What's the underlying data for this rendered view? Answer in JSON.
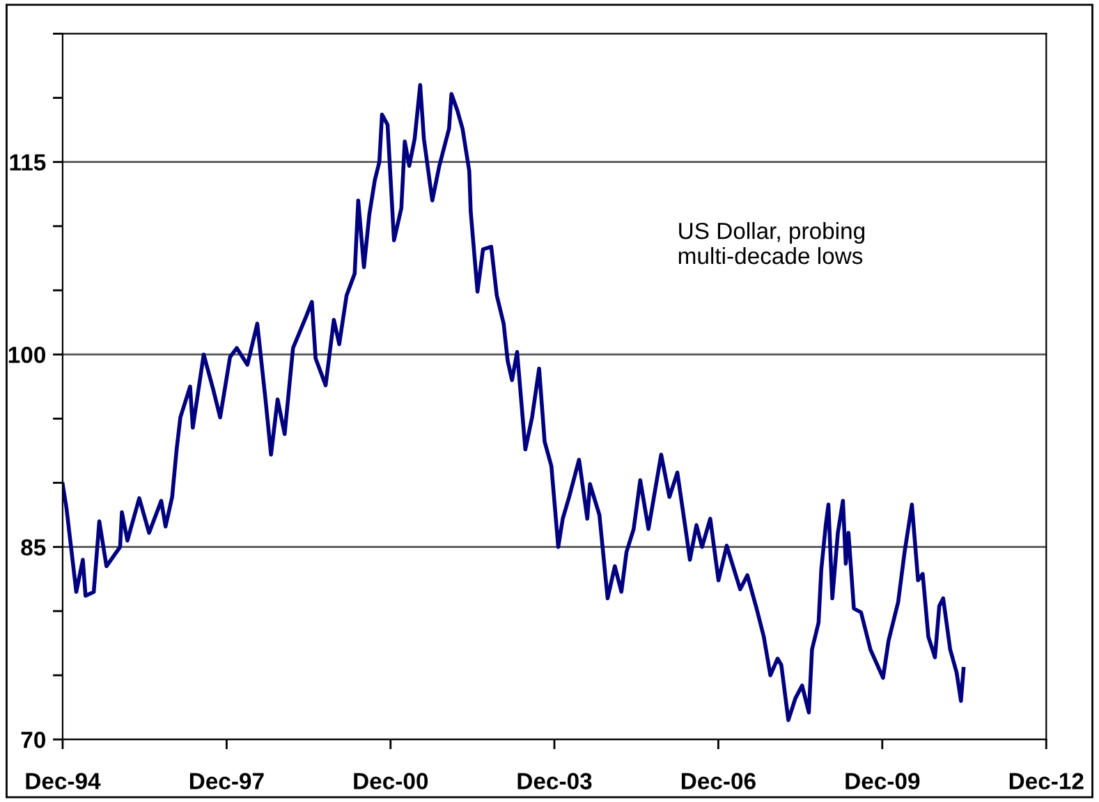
{
  "chart_data": {
    "type": "line",
    "x": [
      "1994-12-01",
      "1994-12-27",
      "1995-02-03",
      "1995-03-02",
      "1995-04-15",
      "1995-05-03",
      "1995-06-27",
      "1995-08-03",
      "1995-09-20",
      "1995-12-20",
      "1996-01-01",
      "1996-02-07",
      "1996-04-26",
      "1996-07-01",
      "1996-09-20",
      "1996-10-19",
      "1996-12-02",
      "1997-01-01",
      "1997-01-26",
      "1997-04-01",
      "1997-04-19",
      "1997-07-01",
      "1997-09-02",
      "1997-10-19",
      "1997-12-24",
      "1998-02-07",
      "1998-04-19",
      "1998-06-24",
      "1998-08-18",
      "1998-09-24",
      "1998-11-07",
      "1998-12-24",
      "1999-02-18",
      "1999-05-18",
      "1999-06-24",
      "1999-07-19",
      "1999-09-24",
      "1999-11-18",
      "1999-12-24",
      "2000-02-11",
      "2000-04-05",
      "2000-04-29",
      "2000-06-06",
      "2000-07-12",
      "2000-08-18",
      "2000-09-17",
      "2000-10-05",
      "2000-11-11",
      "2000-12-24",
      "2001-02-11",
      "2001-03-06",
      "2001-04-05",
      "2001-05-11",
      "2001-06-17",
      "2001-07-12",
      "2001-09-06",
      "2001-10-23",
      "2001-12-27",
      "2002-01-12",
      "2002-02-21",
      "2002-03-27",
      "2002-05-11",
      "2002-05-21",
      "2002-07-05",
      "2002-08-11",
      "2002-10-05",
      "2002-11-11",
      "2002-12-27",
      "2003-01-23",
      "2003-02-21",
      "2003-03-27",
      "2003-05-21",
      "2003-07-05",
      "2003-08-21",
      "2003-09-27",
      "2003-11-11",
      "2003-12-27",
      "2004-01-26",
      "2004-03-09",
      "2004-05-14",
      "2004-07-08",
      "2004-07-26",
      "2004-09-27",
      "2004-11-21",
      "2005-01-08",
      "2005-02-21",
      "2005-03-27",
      "2005-05-14",
      "2005-06-27",
      "2005-08-21",
      "2005-11-14",
      "2006-01-08",
      "2006-03-02",
      "2006-04-26",
      "2006-05-25",
      "2006-07-08",
      "2006-08-14",
      "2006-10-08",
      "2006-12-02",
      "2007-01-26",
      "2007-04-26",
      "2007-06-13",
      "2007-08-14",
      "2007-10-01",
      "2007-11-14",
      "2008-01-01",
      "2008-01-26",
      "2008-03-13",
      "2008-04-29",
      "2008-06-13",
      "2008-07-28",
      "2008-08-18",
      "2008-10-01",
      "2008-10-19",
      "2008-11-18",
      "2008-12-06",
      "2009-01-01",
      "2009-02-07",
      "2009-03-13",
      "2009-04-01",
      "2009-04-19",
      "2009-05-25",
      "2009-07-12",
      "2009-09-13",
      "2009-12-06",
      "2010-01-12",
      "2010-03-17",
      "2010-04-29",
      "2010-06-17",
      "2010-07-28",
      "2010-08-28",
      "2010-10-05",
      "2010-11-18",
      "2010-12-17",
      "2011-01-12",
      "2011-02-28",
      "2011-04-12",
      "2011-05-11",
      "2011-05-28"
    ],
    "series": [
      {
        "color": "#000080",
        "values": [
          89.9,
          88.0,
          84.2,
          81.5,
          84.0,
          81.2,
          81.5,
          87.0,
          83.5,
          85.0,
          87.7,
          85.5,
          88.8,
          86.1,
          88.6,
          86.6,
          88.9,
          92.6,
          95.1,
          97.5,
          94.3,
          100.0,
          97.3,
          95.1,
          99.8,
          100.5,
          99.2,
          102.4,
          96.5,
          92.2,
          96.5,
          93.8,
          100.5,
          103.0,
          104.1,
          99.7,
          97.6,
          102.7,
          100.8,
          104.6,
          106.3,
          112.0,
          106.8,
          110.9,
          113.6,
          115.0,
          118.7,
          117.9,
          108.9,
          111.4,
          116.6,
          114.7,
          116.8,
          121.0,
          116.8,
          112.0,
          114.7,
          117.6,
          120.3,
          119.0,
          117.6,
          114.3,
          111.1,
          104.9,
          108.2,
          108.4,
          104.6,
          102.4,
          99.5,
          98.0,
          100.2,
          92.6,
          95.1,
          98.9,
          93.2,
          91.3,
          85.0,
          87.2,
          88.9,
          91.8,
          87.2,
          89.9,
          87.5,
          81.0,
          83.5,
          81.5,
          84.6,
          86.4,
          90.2,
          86.4,
          92.2,
          88.9,
          90.8,
          86.4,
          84.0,
          86.7,
          85.0,
          87.2,
          82.4,
          85.1,
          81.7,
          82.8,
          80.2,
          78.0,
          75.0,
          76.3,
          75.8,
          71.5,
          73.2,
          74.2,
          72.1,
          77.0,
          79.1,
          83.2,
          86.7,
          88.3,
          81.0,
          86.1,
          88.6,
          83.7,
          86.1,
          80.2,
          79.9,
          77.0,
          74.8,
          77.7,
          80.7,
          84.6,
          88.3,
          82.4,
          82.9,
          78.0,
          76.4,
          80.4,
          81.0,
          77.0,
          75.2,
          73.0,
          75.5
        ]
      }
    ],
    "xlim": [
      "1994-12-01",
      "2012-12-01"
    ],
    "xticks": [
      {
        "value": "1994-12-01",
        "label": "Dec-94"
      },
      {
        "value": "1997-12-01",
        "label": "Dec-97"
      },
      {
        "value": "2000-12-01",
        "label": "Dec-00"
      },
      {
        "value": "2003-12-01",
        "label": "Dec-03"
      },
      {
        "value": "2006-12-01",
        "label": "Dec-06"
      },
      {
        "value": "2009-12-01",
        "label": "Dec-09"
      },
      {
        "value": "2012-12-01",
        "label": "Dec-12"
      }
    ],
    "ylim": [
      70,
      125
    ],
    "yticks": [
      70,
      {
        "value": 75,
        "label": null
      },
      {
        "value": 80,
        "label": null
      },
      85,
      {
        "value": 90,
        "label": null
      },
      {
        "value": 95,
        "label": null
      },
      100,
      {
        "value": 105,
        "label": null
      },
      {
        "value": 110,
        "label": null
      },
      115,
      {
        "value": 120,
        "label": null
      },
      {
        "value": 125,
        "label": null
      }
    ],
    "grid": "y",
    "legend": false,
    "marker": "none",
    "line_style": "solid",
    "annotations": [
      "US Dollar, probing\nmulti-decade lows"
    ]
  }
}
